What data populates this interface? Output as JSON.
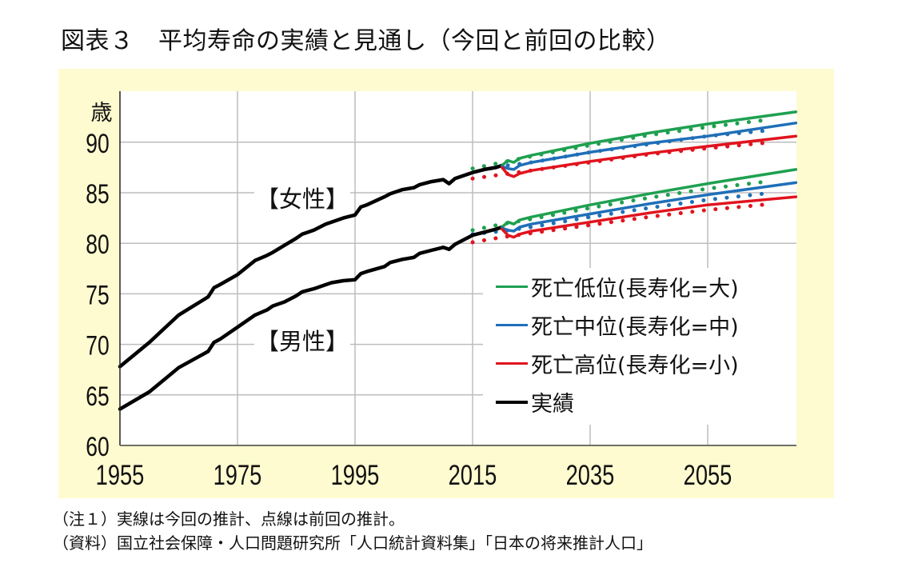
{
  "title": "図表３　平均寿命の実績と見通し（今回と前回の比較）",
  "notes": {
    "note1": "（注１）実線は今回の推計、点線は前回の推計。",
    "source": "（資料）国立社会保障・人口問題研究所「人口統計資料集」「日本の将来推計人口」"
  },
  "colors": {
    "panel_bg": "#fffbd0",
    "low": "#1fa050",
    "mid": "#1f6fb8",
    "high": "#e0141e",
    "actual": "#000000",
    "grid": "#bdbdbd"
  },
  "chart_data": {
    "type": "line",
    "title": "平均寿命の実績と見通し（今回と前回の比較）",
    "xlabel": "",
    "ylabel": "歳",
    "xlim": [
      1955,
      2070
    ],
    "ylim": [
      60,
      92
    ],
    "x_ticks": [
      1955,
      1975,
      1995,
      2015,
      2035,
      2055
    ],
    "y_ticks": [
      60,
      65,
      70,
      75,
      80,
      85,
      90
    ],
    "grid": true,
    "legend_position": "center-right",
    "legend": [
      {
        "key": "low",
        "label": "死亡低位(長寿化=大)"
      },
      {
        "key": "mid",
        "label": "死亡中位(長寿化=中)"
      },
      {
        "key": "high",
        "label": "死亡高位(長寿化=小)"
      },
      {
        "key": "actual",
        "label": "実績"
      }
    ],
    "annotations": {
      "female": "【女性】",
      "male": "【男性】"
    },
    "series": [
      {
        "name": "実績（女性）",
        "group": "female",
        "key": "actual",
        "style": "solid",
        "x": [
          1955,
          1960,
          1965,
          1970,
          1971,
          1972,
          1975,
          1978,
          1980,
          1981,
          1983,
          1985,
          1986,
          1988,
          1990,
          1991,
          1993,
          1995,
          1996,
          1997,
          2000,
          2001,
          2003,
          2005,
          2006,
          2008,
          2010,
          2011,
          2012,
          2015,
          2017,
          2019,
          2020
        ],
        "y": [
          67.8,
          70.2,
          72.9,
          74.7,
          75.6,
          75.9,
          76.9,
          78.3,
          78.8,
          79.1,
          79.8,
          80.5,
          80.9,
          81.3,
          81.9,
          82.1,
          82.5,
          82.8,
          83.6,
          83.8,
          84.6,
          84.9,
          85.3,
          85.5,
          85.8,
          86.1,
          86.3,
          85.9,
          86.4,
          87.0,
          87.3,
          87.5,
          87.7
        ]
      },
      {
        "name": "実績（男性）",
        "group": "male",
        "key": "actual",
        "style": "solid",
        "x": [
          1955,
          1960,
          1965,
          1970,
          1971,
          1972,
          1975,
          1978,
          1980,
          1981,
          1983,
          1985,
          1986,
          1988,
          1990,
          1991,
          1993,
          1995,
          1996,
          1997,
          2000,
          2001,
          2003,
          2005,
          2006,
          2008,
          2010,
          2011,
          2012,
          2015,
          2017,
          2019,
          2020
        ],
        "y": [
          63.6,
          65.3,
          67.7,
          69.3,
          70.2,
          70.5,
          71.7,
          72.9,
          73.4,
          73.8,
          74.2,
          74.8,
          75.2,
          75.5,
          75.9,
          76.1,
          76.3,
          76.4,
          77.0,
          77.2,
          77.7,
          78.1,
          78.4,
          78.6,
          79.0,
          79.3,
          79.6,
          79.4,
          79.9,
          80.8,
          81.1,
          81.4,
          81.6
        ]
      },
      {
        "name": "死亡低位（女性・今回）",
        "group": "female",
        "key": "low",
        "style": "solid",
        "x": [
          2020,
          2021,
          2022,
          2023,
          2025,
          2035,
          2045,
          2055,
          2070
        ],
        "y": [
          87.7,
          88.2,
          88.0,
          88.4,
          88.7,
          89.9,
          90.9,
          91.8,
          93.0
        ]
      },
      {
        "name": "死亡中位（女性・今回）",
        "group": "female",
        "key": "mid",
        "style": "solid",
        "x": [
          2020,
          2021,
          2022,
          2023,
          2025,
          2035,
          2045,
          2055,
          2070
        ],
        "y": [
          87.6,
          87.4,
          87.3,
          87.7,
          88.0,
          89.0,
          89.9,
          90.6,
          91.9
        ]
      },
      {
        "name": "死亡高位（女性・今回）",
        "group": "female",
        "key": "high",
        "style": "solid",
        "x": [
          2020,
          2021,
          2022,
          2023,
          2025,
          2035,
          2045,
          2055,
          2070
        ],
        "y": [
          87.5,
          86.8,
          86.6,
          86.9,
          87.2,
          88.1,
          88.9,
          89.6,
          90.6
        ]
      },
      {
        "name": "死亡低位（男性・今回）",
        "group": "male",
        "key": "low",
        "style": "solid",
        "x": [
          2020,
          2021,
          2022,
          2023,
          2025,
          2035,
          2045,
          2055,
          2070
        ],
        "y": [
          81.6,
          82.1,
          81.9,
          82.3,
          82.6,
          83.8,
          84.9,
          85.9,
          87.3
        ]
      },
      {
        "name": "死亡中位（男性・今回）",
        "group": "male",
        "key": "mid",
        "style": "solid",
        "x": [
          2020,
          2021,
          2022,
          2023,
          2025,
          2035,
          2045,
          2055,
          2070
        ],
        "y": [
          81.5,
          81.3,
          81.2,
          81.6,
          81.9,
          82.9,
          83.9,
          84.8,
          86.0
        ]
      },
      {
        "name": "死亡高位（男性・今回）",
        "group": "male",
        "key": "high",
        "style": "solid",
        "x": [
          2020,
          2021,
          2022,
          2023,
          2025,
          2035,
          2045,
          2055,
          2070
        ],
        "y": [
          81.4,
          80.8,
          80.6,
          80.9,
          81.2,
          82.1,
          83.0,
          83.8,
          84.6
        ]
      },
      {
        "name": "死亡低位（女性・前回）",
        "group": "female",
        "key": "low",
        "style": "dotted",
        "x": [
          2015,
          2020,
          2025,
          2035,
          2045,
          2055,
          2065
        ],
        "y": [
          87.4,
          88.0,
          88.6,
          89.7,
          90.7,
          91.5,
          92.2
        ]
      },
      {
        "name": "死亡中位（女性・前回）",
        "group": "female",
        "key": "mid",
        "style": "dotted",
        "x": [
          2021,
          2025,
          2035,
          2045,
          2055,
          2066
        ],
        "y": [
          87.7,
          88.0,
          89.0,
          89.8,
          90.6,
          91.2
        ]
      },
      {
        "name": "死亡高位（女性・前回）",
        "group": "female",
        "key": "high",
        "style": "dotted",
        "x": [
          2015,
          2020,
          2025,
          2035,
          2045,
          2055,
          2066
        ],
        "y": [
          86.4,
          86.8,
          87.2,
          88.0,
          88.8,
          89.4,
          90.0
        ]
      },
      {
        "name": "死亡低位（男性・前回）",
        "group": "male",
        "key": "low",
        "style": "dotted",
        "x": [
          2015,
          2020,
          2025,
          2035,
          2045,
          2055,
          2065
        ],
        "y": [
          81.3,
          81.9,
          82.4,
          83.5,
          84.5,
          85.4,
          86.1
        ]
      },
      {
        "name": "死亡中位（男性・前回）",
        "group": "male",
        "key": "mid",
        "style": "dotted",
        "x": [
          2015,
          2020,
          2025,
          2035,
          2045,
          2055,
          2066
        ],
        "y": [
          80.9,
          81.2,
          81.6,
          82.6,
          83.5,
          84.3,
          85.0
        ]
      },
      {
        "name": "死亡高位（男性・前回）",
        "group": "male",
        "key": "high",
        "style": "dotted",
        "x": [
          2015,
          2020,
          2025,
          2035,
          2045,
          2055,
          2066
        ],
        "y": [
          80.1,
          80.6,
          81.0,
          81.8,
          82.6,
          83.3,
          83.9
        ]
      }
    ]
  }
}
